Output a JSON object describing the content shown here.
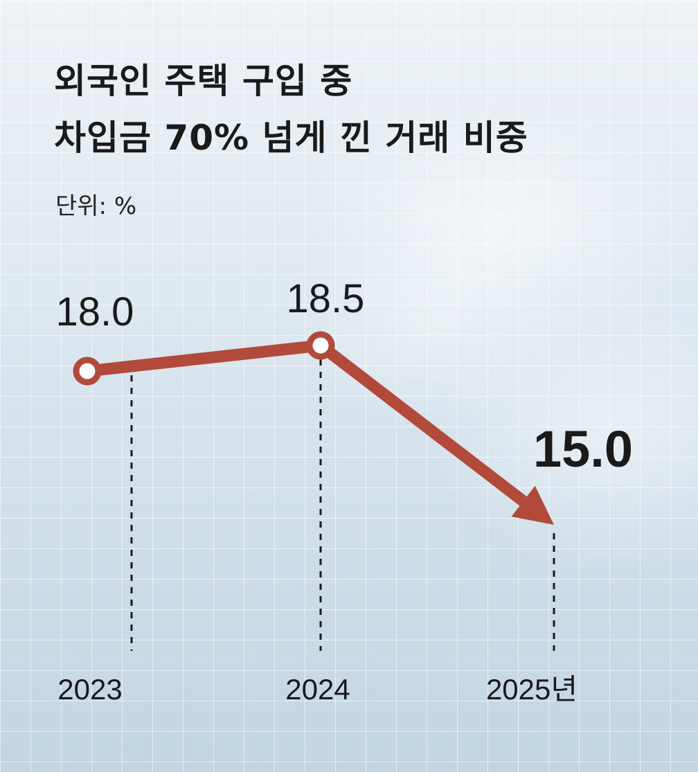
{
  "title_line1": "외국인 주택 구입 중",
  "title_line2": "차입금 70% 넘게 낀 거래 비중",
  "unit": "단위: %",
  "colors": {
    "line": "#b24a3c",
    "highlight": "#b24a3c",
    "text": "#1a1a1a"
  },
  "chart_data": {
    "type": "line",
    "categories": [
      "2023",
      "2024",
      "2025년"
    ],
    "values": [
      18.0,
      18.5,
      15.0
    ],
    "value_labels": [
      "18.0",
      "18.5",
      "15.0"
    ],
    "highlight_index": 2,
    "marker_style": [
      "circle",
      "circle",
      "arrow"
    ]
  }
}
